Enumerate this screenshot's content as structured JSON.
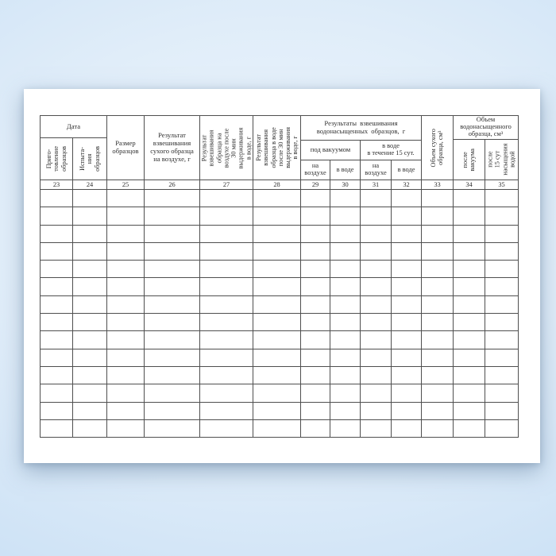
{
  "backdrop": {
    "top_color": "#bdd7ef",
    "center_color": "#f0f7fd",
    "bottom_color": "#c6ddf3",
    "sheet_color": "#ffffff",
    "border_color": "#4f4f4f",
    "text_color": "#2f2f2f"
  },
  "table": {
    "body_row_count": 14,
    "numbers": [
      "23",
      "24",
      "25",
      "26",
      "27",
      "28",
      "29",
      "30",
      "31",
      "32",
      "33",
      "34",
      "35"
    ],
    "date_group": {
      "title": "Дата",
      "prep_label": "Приго-\nтовление\nобразцов",
      "test_label": "Испыта-\nния\nобразцов"
    },
    "size_label": "Размер\nобразцов",
    "dry_air_label": "Результат\nвзвешивания\nсухого образца\nна воздухе, г",
    "air30_label": "Результат\nвзвешивания\nобразца на\nвоздухе после\n30 мин\nвыдерживания\nв воде, г",
    "water30_label": "Результат\nвзвешивания\nобразца в воде\nпосле 30 мин\nвыдерживания\nв воде, г",
    "saturated_group": {
      "title": "Результаты взвешивания\nводонасыщенных образцов, г",
      "vacuum_label": "под вакуумом",
      "water15_label": "в воде\nв течение 15 сут.",
      "vacuum_air_label": "на\nвоздухе",
      "vacuum_water_label": "в воде",
      "water15_air_label": "на\nвоздухе",
      "water15_water_label": "в воде"
    },
    "dry_volume_label": "Объем сухого\nобразца, см³",
    "sat_volume_group": {
      "title": "Объем\nводонасыщенного\nобразца, см³",
      "after_vacuum_label": "после\nвакуума",
      "after_saturation_label": "после\n15 сут\nнасыщения\nводой"
    }
  }
}
